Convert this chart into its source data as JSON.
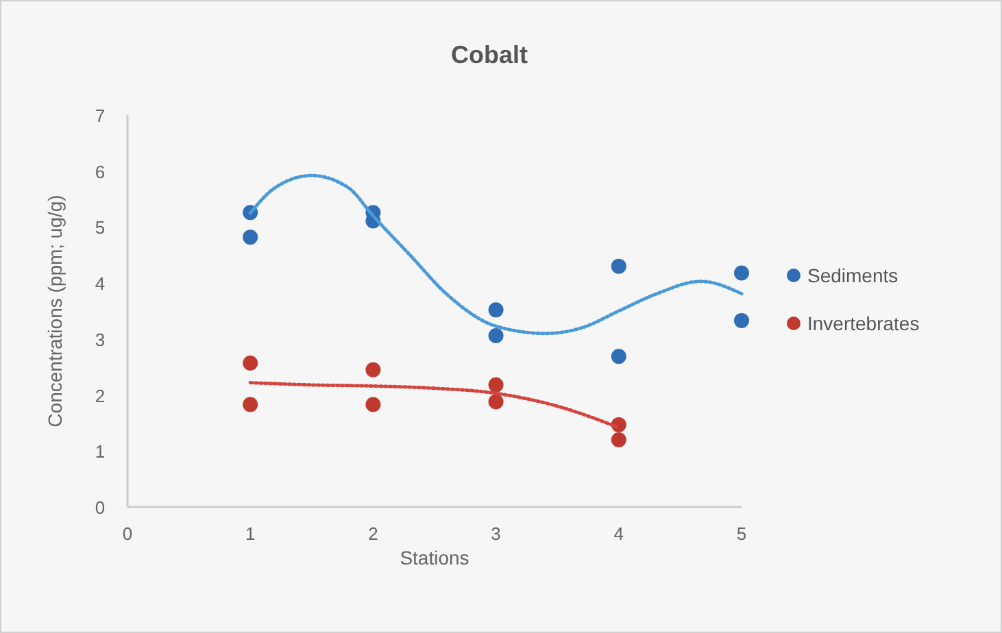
{
  "chart_data": {
    "type": "scatter",
    "title": "Cobalt",
    "xlabel": "Stations",
    "ylabel": "Concentrations (ppm; ug/g)",
    "xlim": [
      0,
      5
    ],
    "xticks": [
      0,
      1,
      2,
      3,
      4,
      5
    ],
    "ylim": [
      0,
      7
    ],
    "yticks": [
      0,
      1,
      2,
      3,
      4,
      5,
      6,
      7
    ],
    "grid": false,
    "legend": "right",
    "marker": "circle",
    "series": [
      {
        "name": "Sediments",
        "color": "#2f6db5",
        "x": [
          1,
          1,
          2,
          2,
          3,
          3,
          4,
          4,
          5,
          5
        ],
        "values": [
          5.26,
          4.82,
          5.26,
          5.11,
          3.52,
          3.06,
          4.3,
          2.69,
          4.18,
          3.33
        ]
      },
      {
        "name": "Invertebrates",
        "color": "#c0392f",
        "x": [
          1,
          1,
          2,
          2,
          3,
          3,
          4,
          4
        ],
        "values": [
          2.57,
          1.83,
          2.45,
          1.83,
          2.18,
          1.88,
          1.47,
          1.2
        ]
      },
      {
        "type": "line",
        "color": "#4a9ad8",
        "line_style": "dotted",
        "marker": "none",
        "x": [
          1,
          1.2,
          1.5,
          1.8,
          2,
          2.3,
          2.6,
          3,
          3.4,
          3.7,
          4,
          4.3,
          4.67,
          5
        ],
        "values": [
          5.25,
          5.7,
          5.92,
          5.7,
          5.2,
          4.5,
          3.8,
          3.23,
          3.1,
          3.2,
          3.5,
          3.8,
          4.03,
          3.81
        ]
      },
      {
        "type": "line",
        "color": "#d4453f",
        "line_style": "dotted",
        "marker": "none",
        "x": [
          1,
          1.5,
          2,
          2.5,
          3,
          3.5,
          4
        ],
        "values": [
          2.22,
          2.18,
          2.16,
          2.12,
          2.03,
          1.8,
          1.42
        ]
      }
    ]
  }
}
